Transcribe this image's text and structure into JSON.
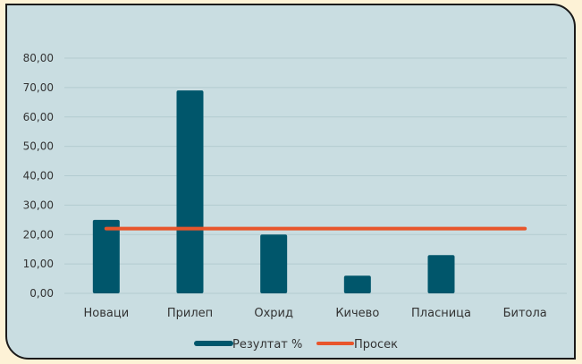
{
  "chart_data": {
    "type": "bar",
    "categories": [
      "Новаци",
      "Прилеп",
      "Охрид",
      "Кичево",
      "Пласница",
      "Битола"
    ],
    "series": [
      {
        "name": "Резултат %",
        "type": "bar",
        "values": [
          25,
          69,
          20,
          6,
          13,
          0
        ]
      },
      {
        "name": "Просек",
        "type": "line",
        "values": [
          22,
          22,
          22,
          22,
          22,
          22
        ]
      }
    ],
    "ylim": [
      0,
      80
    ],
    "yticks": [
      "0,00",
      "10,00",
      "20,00",
      "30,00",
      "40,00",
      "50,00",
      "60,00",
      "70,00",
      "80,00"
    ],
    "legend_position": "bottom",
    "grid": true,
    "colors": {
      "bar": "#00566b",
      "line": "#e8552b",
      "grid": "#b3cbd0",
      "background": "#c9dde1"
    }
  }
}
